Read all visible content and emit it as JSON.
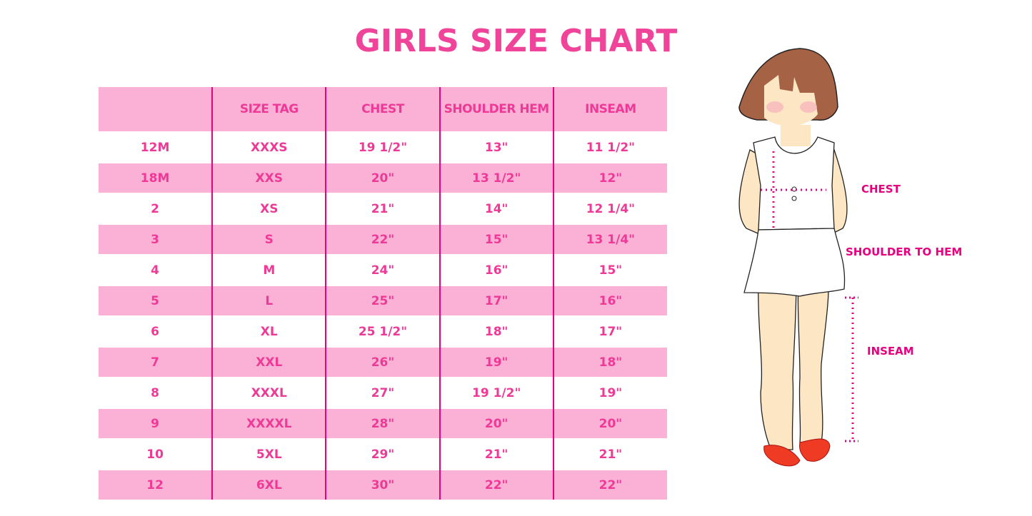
{
  "title": "GIRLS SIZE CHART",
  "table": {
    "headers": [
      "",
      "SIZE TAG",
      "CHEST",
      "SHOULDER HEM",
      "INSEAM"
    ],
    "rows": [
      [
        "12M",
        "XXXS",
        "19 1/2\"",
        "13\"",
        "11 1/2\""
      ],
      [
        "18M",
        "XXS",
        "20\"",
        "13 1/2\"",
        "12\""
      ],
      [
        "2",
        "XS",
        "21\"",
        "14\"",
        "12 1/4\""
      ],
      [
        "3",
        "S",
        "22\"",
        "15\"",
        "13 1/4\""
      ],
      [
        "4",
        "M",
        "24\"",
        "16\"",
        "15\""
      ],
      [
        "5",
        "L",
        "25\"",
        "17\"",
        "16\""
      ],
      [
        "6",
        "XL",
        "25 1/2\"",
        "18\"",
        "17\""
      ],
      [
        "7",
        "XXL",
        "26\"",
        "19\"",
        "18\""
      ],
      [
        "8",
        "XXXL",
        "27\"",
        "19 1/2\"",
        "19\""
      ],
      [
        "9",
        "XXXXL",
        "28\"",
        "20\"",
        "20\""
      ],
      [
        "10",
        "5XL",
        "29\"",
        "21\"",
        "21\""
      ],
      [
        "12",
        "6XL",
        "30\"",
        "22\"",
        "22\""
      ]
    ]
  },
  "figure": {
    "chest_label": "CHEST",
    "shoulder_label": "SHOULDER TO HEM",
    "inseam_label": "INSEAM"
  },
  "colors": {
    "accent": "#ee3a96",
    "row_pink": "#fbb0d6",
    "divider": "#e6007e"
  }
}
